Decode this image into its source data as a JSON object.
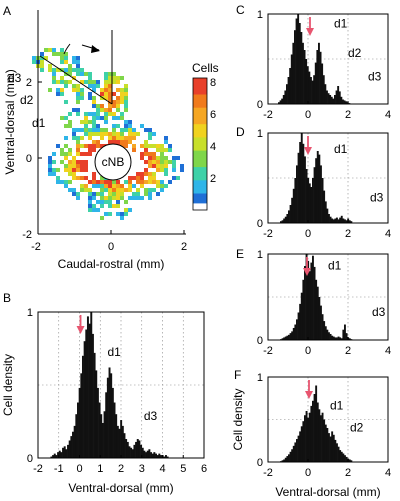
{
  "panels": {
    "A": {
      "letter": "A",
      "xlabel": "Caudal-rostral (mm)",
      "ylabel": "Ventral-dorsal (mm)",
      "xticks": [
        -2,
        0,
        2
      ],
      "yticks": [
        -2,
        0,
        2
      ],
      "center_label": "cNB",
      "region_labels": [
        "d3",
        "d2",
        "d1"
      ],
      "colorbar": {
        "title": "Cells",
        "ticks": [
          2,
          4,
          6,
          8
        ]
      }
    }
  },
  "chart_data": [
    {
      "id": "B",
      "type": "bar",
      "panel_label": "B",
      "xlabel": "Ventral-dorsal (mm)",
      "ylabel": "Cell density",
      "xlim": [
        -2,
        6
      ],
      "ylim": [
        0,
        1
      ],
      "xticks": [
        -2,
        -1,
        0,
        1,
        2,
        3,
        4,
        5,
        6
      ],
      "yticks": [
        0,
        1
      ],
      "bin_start": -1.4,
      "bin_width": 0.08,
      "values": [
        0.01,
        0.02,
        0.03,
        0.02,
        0.04,
        0.05,
        0.04,
        0.07,
        0.08,
        0.06,
        0.09,
        0.12,
        0.15,
        0.18,
        0.22,
        0.3,
        0.38,
        0.48,
        0.58,
        0.7,
        0.8,
        0.88,
        0.97,
        0.92,
        1.0,
        0.85,
        0.72,
        0.6,
        0.48,
        0.38,
        0.3,
        0.24,
        0.32,
        0.45,
        0.55,
        0.62,
        0.58,
        0.48,
        0.38,
        0.3,
        0.22,
        0.2,
        0.26,
        0.22,
        0.17,
        0.13,
        0.11,
        0.08,
        0.07,
        0.06,
        0.09,
        0.11,
        0.13,
        0.12,
        0.09,
        0.07,
        0.05,
        0.04,
        0.05,
        0.06,
        0.04,
        0.03,
        0.04,
        0.03,
        0.02,
        0.03,
        0.02,
        0.02,
        0.01,
        0.02,
        0.01
      ],
      "annotations": [
        {
          "text": "d1",
          "x": 1.35,
          "y": 0.7
        },
        {
          "text": "d3",
          "x": 3.1,
          "y": 0.26
        }
      ],
      "arrow_x": 0.05,
      "grid": true
    },
    {
      "id": "C",
      "type": "bar",
      "panel_label": "C",
      "xlim": [
        -2,
        4
      ],
      "ylim": [
        0,
        1
      ],
      "xticks": [
        -2,
        0,
        2,
        4
      ],
      "yticks": [
        0,
        1
      ],
      "bin_start": -1.5,
      "bin_width": 0.08,
      "values": [
        0.02,
        0.04,
        0.06,
        0.1,
        0.15,
        0.22,
        0.3,
        0.4,
        0.55,
        0.68,
        0.82,
        0.95,
        1.0,
        0.9,
        0.8,
        0.68,
        0.6,
        0.5,
        0.42,
        0.36,
        0.3,
        0.26,
        0.32,
        0.46,
        0.6,
        0.68,
        0.58,
        0.45,
        0.32,
        0.22,
        0.15,
        0.12,
        0.1,
        0.08,
        0.06,
        0.1,
        0.15,
        0.2,
        0.14,
        0.08,
        0.05,
        0.04,
        0.03,
        0.02,
        0.01
      ],
      "annotations": [
        {
          "text": "d1",
          "x": 1.3,
          "y": 0.85
        },
        {
          "text": "d2",
          "x": 2.0,
          "y": 0.52
        },
        {
          "text": "d3",
          "x": 3.0,
          "y": 0.26
        }
      ],
      "arrow_x": 0.1,
      "grid": true
    },
    {
      "id": "D",
      "type": "bar",
      "panel_label": "D",
      "xlim": [
        -2,
        4
      ],
      "ylim": [
        0,
        1
      ],
      "xticks": [
        -2,
        0,
        2,
        4
      ],
      "yticks": [
        0,
        1
      ],
      "bin_start": -1.4,
      "bin_width": 0.08,
      "values": [
        0.02,
        0.03,
        0.05,
        0.07,
        0.1,
        0.14,
        0.2,
        0.28,
        0.38,
        0.5,
        0.64,
        0.78,
        0.9,
        1.0,
        0.88,
        0.74,
        0.6,
        0.5,
        0.44,
        0.4,
        0.5,
        0.62,
        0.72,
        0.8,
        0.76,
        0.64,
        0.5,
        0.36,
        0.24,
        0.16,
        0.1,
        0.07,
        0.05,
        0.04,
        0.05,
        0.06,
        0.04,
        0.06,
        0.08,
        0.05,
        0.04,
        0.03,
        0.05,
        0.03,
        0.02
      ],
      "annotations": [
        {
          "text": "d1",
          "x": 1.3,
          "y": 0.78
        },
        {
          "text": "d3",
          "x": 3.1,
          "y": 0.24
        }
      ],
      "arrow_x": 0.0,
      "grid": true
    },
    {
      "id": "E",
      "type": "bar",
      "panel_label": "E",
      "xlim": [
        -2,
        4
      ],
      "ylim": [
        0,
        1
      ],
      "xticks": [
        -2,
        0,
        2,
        4
      ],
      "yticks": [
        0,
        1
      ],
      "bin_start": -1.4,
      "bin_width": 0.08,
      "values": [
        0.01,
        0.02,
        0.03,
        0.04,
        0.05,
        0.06,
        0.08,
        0.1,
        0.14,
        0.18,
        0.24,
        0.32,
        0.42,
        0.55,
        0.7,
        0.86,
        1.0,
        0.92,
        0.8,
        0.9,
        0.98,
        0.85,
        0.7,
        0.62,
        0.5,
        0.4,
        0.3,
        0.22,
        0.16,
        0.12,
        0.09,
        0.07,
        0.05,
        0.04,
        0.03,
        0.03,
        0.04,
        0.03,
        0.02,
        0.12,
        0.18,
        0.08,
        0.03,
        0.02,
        0.01
      ],
      "annotations": [
        {
          "text": "d1",
          "x": 1.0,
          "y": 0.82
        },
        {
          "text": "d3",
          "x": 3.2,
          "y": 0.28
        }
      ],
      "arrow_x": -0.05,
      "grid": true
    },
    {
      "id": "F",
      "type": "bar",
      "panel_label": "F",
      "xlabel": "Ventral-dorsal (mm)",
      "ylabel": "Cell density",
      "xlim": [
        -2,
        4
      ],
      "ylim": [
        0,
        1
      ],
      "xticks": [
        -2,
        0,
        2,
        4
      ],
      "yticks": [
        0,
        1
      ],
      "bin_start": -1.4,
      "bin_width": 0.08,
      "values": [
        0.01,
        0.02,
        0.03,
        0.05,
        0.07,
        0.09,
        0.12,
        0.15,
        0.19,
        0.23,
        0.27,
        0.31,
        0.36,
        0.42,
        0.48,
        0.55,
        0.6,
        0.52,
        0.58,
        0.66,
        0.72,
        0.8,
        0.9,
        0.7,
        0.62,
        0.55,
        0.58,
        0.5,
        0.44,
        0.4,
        0.34,
        0.3,
        0.36,
        0.32,
        0.26,
        0.22,
        0.18,
        0.14,
        0.12,
        0.1,
        0.08,
        0.06,
        0.04,
        0.03,
        0.02
      ],
      "annotations": [
        {
          "text": "d1",
          "x": 1.1,
          "y": 0.62
        },
        {
          "text": "d2",
          "x": 2.1,
          "y": 0.36
        }
      ],
      "arrow_x": 0.05,
      "grid": true
    }
  ],
  "colors": {
    "arrow": "#e8556f",
    "bars": "#111111"
  }
}
